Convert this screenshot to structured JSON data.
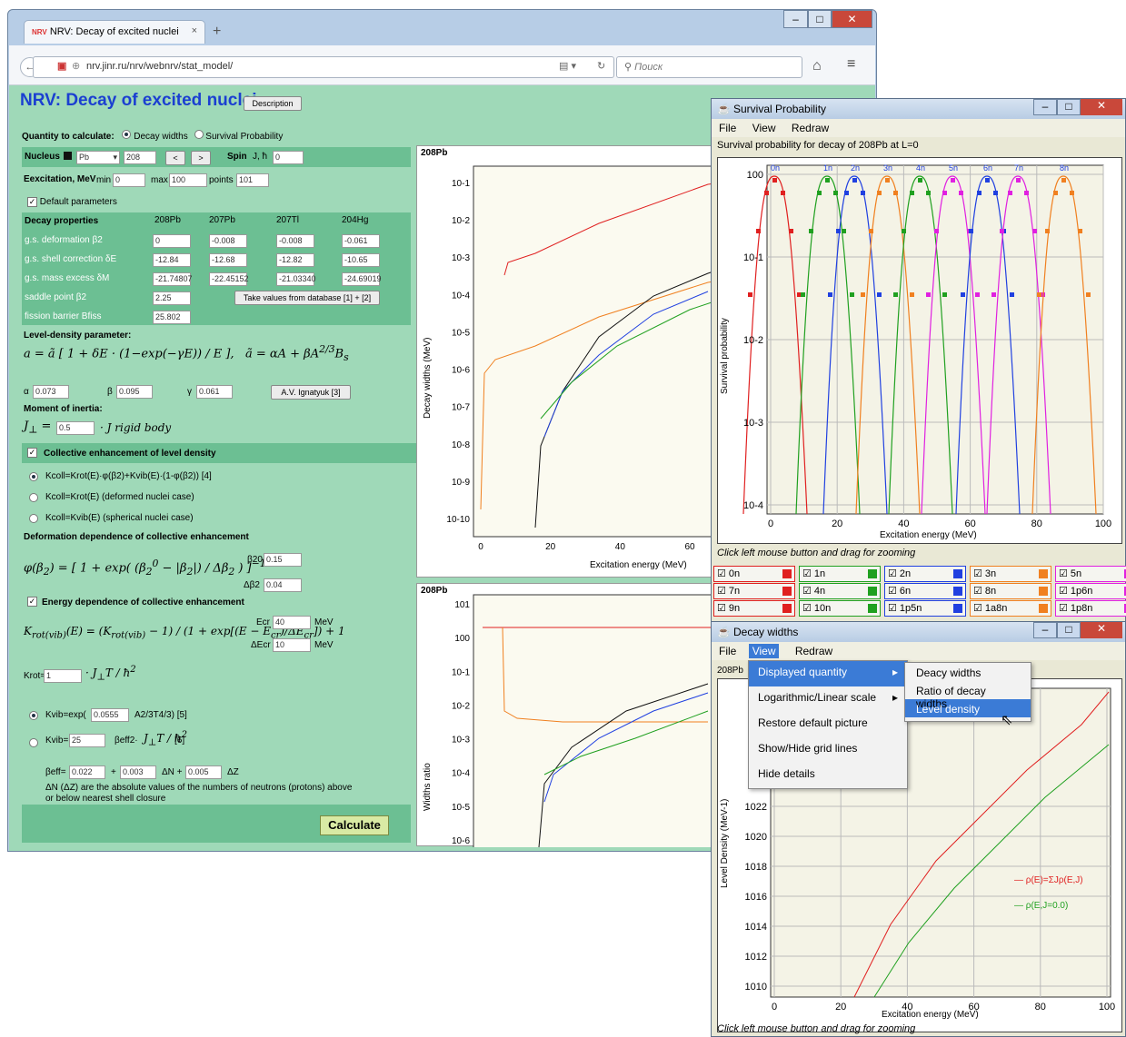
{
  "browser": {
    "tab_title": "NRV: Decay of excited nuclei",
    "tab_logo": "NRV",
    "url": "nrv.jinr.ru/nrv/webnrv/stat_model/",
    "url_host": "jinr.ru",
    "search_placeholder": "Поиск",
    "new_tab": "+",
    "close_tab": "×"
  },
  "page": {
    "title": "NRV: Decay of excited nuclei",
    "description_button": "Description",
    "quantity_label": "Quantity to calculate:",
    "quantity_options": [
      "Decay widths",
      "Survival Probability"
    ],
    "nucleus_label": "Nucleus",
    "nucleus_element": "Pb",
    "nucleus_mass": "208",
    "prev": "<",
    "next": ">",
    "spin_label": "Spin",
    "spin_unit": "J, ħ",
    "spin_value": "0",
    "excitation_label": "Eexcitation, MeV",
    "min_label": "min",
    "min_value": "0",
    "max_label": "max",
    "max_value": "100",
    "points_label": "points",
    "points_value": "101",
    "default_params": "Default parameters",
    "decay_props_label": "Decay properties",
    "nuclei": [
      "208Pb",
      "207Pb",
      "207Tl",
      "204Hg"
    ],
    "rows": [
      {
        "label": "g.s. deformation β2",
        "values": [
          "0",
          "-0.008",
          "-0.008",
          "-0.061"
        ]
      },
      {
        "label": "g.s. shell correction δE",
        "values": [
          "-12.84",
          "-12.68",
          "-12.82",
          "-10.65"
        ]
      },
      {
        "label": "g.s. mass excess δM",
        "values": [
          "-21.74807",
          "-22.45152",
          "-21.03340",
          "-24.69019"
        ]
      }
    ],
    "saddle_label": "saddle point β2",
    "saddle_value": "2.25",
    "take_values": "Take values from database [1] + [2]",
    "fission_label": "fission barrier Bfiss",
    "fission_value": "25.802",
    "ldp_label": "Level-density parameter:",
    "alpha_label": "α",
    "alpha_value": "0.073",
    "beta_label": "β",
    "beta_value": "0.095",
    "gamma_label": "γ",
    "gamma_value": "0.061",
    "ignatyuk": "A.V. Ignatyuk [3]",
    "moi_label": "Moment of inertia:",
    "moi_value": "0.5",
    "moi_suffix": "· J rigid body",
    "collective_label": "Collective enhancement of level density",
    "kcoll_options": [
      "Kcoll=Krot(E)·φ(β2)+Kvib(E)·(1-φ(β2)) [4]",
      "Kcoll=Krot(E) (deformed nuclei case)",
      "Kcoll=Kvib(E) (spherical nuclei case)"
    ],
    "deform_dep_label": "Deformation dependence of collective enhancement",
    "beta20_label": "β20",
    "beta20_value": "0.15",
    "dbeta2_label": "Δβ2",
    "dbeta2_value": "0.04",
    "energy_dep_label": "Energy dependence of collective enhancement",
    "ecr_label": "Ecr",
    "ecr_value": "40",
    "decr_label": "ΔEcr",
    "decr_value": "10",
    "mev": "MeV",
    "krot_label": "Krot=",
    "krot_value": "1",
    "kvib1_label": "Kvib=exp(",
    "kvib1_value": "0.0555",
    "kvib1_suffix": "A2/3T4/3) [5]",
    "kvib2_label": "Kvib=",
    "kvib2_value": "25",
    "kvib2_suffix": "βeff2·",
    "kvib2_ref": "[6]",
    "beff_label": "βeff=",
    "beff_v1": "0.022",
    "beff_v2": "0.003",
    "beff_v3": "0.005",
    "dn": "ΔN +",
    "dz": "ΔZ",
    "note": "ΔN (ΔZ) are the absolute values of the numbers of neutrons (protons) above or below nearest shell closure",
    "calculate": "Calculate",
    "plot1_title": "208Pb",
    "plot1_ylabel": "Decay widths (MeV)",
    "plot1_xlabel": "Excitation energy (MeV)",
    "plot1_yticks": [
      "10-1",
      "10-2",
      "10-3",
      "10-4",
      "10-5",
      "10-6",
      "10-7",
      "10-8",
      "10-9",
      "10-10"
    ],
    "plot1_xticks": [
      "0",
      "20",
      "40",
      "60"
    ],
    "plot2_title": "208Pb",
    "plot2_ylabel": "Widths ratio",
    "plot2_yticks": [
      "101",
      "100",
      "10-1",
      "10-2",
      "10-3",
      "10-4",
      "10-5",
      "10-6"
    ]
  },
  "survival": {
    "title": "Survival Probability",
    "menu": [
      "File",
      "View",
      "Redraw"
    ],
    "subtitle": "Survival probability for decay of 208Pb at L=0",
    "ylabel": "Survival probability",
    "xlabel": "Excitation energy (MeV)",
    "yticks": [
      "100",
      "10-1",
      "10-2",
      "10-3",
      "10-4"
    ],
    "xticks": [
      "0",
      "20",
      "40",
      "60",
      "80",
      "100"
    ],
    "hint": "Click left mouse button and drag for zooming",
    "legend": [
      {
        "label": "0n",
        "color": "#e02020"
      },
      {
        "label": "1n",
        "color": "#20a020"
      },
      {
        "label": "2n",
        "color": "#2040e0"
      },
      {
        "label": "3n",
        "color": "#f08020"
      },
      {
        "label": "5n",
        "color": "#e020e0"
      },
      {
        "label": "7n",
        "color": "#e02020"
      },
      {
        "label": "4n",
        "color": "#20a020"
      },
      {
        "label": "6n",
        "color": "#2040e0"
      },
      {
        "label": "8n",
        "color": "#f08020"
      },
      {
        "label": "1p6n",
        "color": "#e020e0"
      },
      {
        "label": "9n",
        "color": "#e02020"
      },
      {
        "label": "10n",
        "color": "#20a020"
      },
      {
        "label": "1p5n",
        "color": "#2040e0"
      },
      {
        "label": "1a8n",
        "color": "#f08020"
      },
      {
        "label": "1p8n",
        "color": "#e020e0"
      }
    ],
    "curve_labels": [
      "0n",
      "1n",
      "2n",
      "3n",
      "4n",
      "5n",
      "6n",
      "7n",
      "8n"
    ]
  },
  "decay": {
    "title": "Decay widths",
    "menu": [
      "File",
      "View",
      "Redraw"
    ],
    "nucleus": "208Pb",
    "view_menu": [
      "Displayed quantity",
      "Logarithmic/Linear scale",
      "Restore default picture",
      "Show/Hide grid lines",
      "Hide details"
    ],
    "submenu": [
      "Deacy widths",
      "Ratio of decay widths",
      "Level density"
    ],
    "ylabel": "Level Density (MeV-1)",
    "xlabel": "Excitation energy (MeV)",
    "yticks": [
      "1022",
      "1020",
      "1018",
      "1016",
      "1014",
      "1012",
      "1010"
    ],
    "xticks": [
      "0",
      "20",
      "40",
      "60",
      "80",
      "100"
    ],
    "legend": [
      "ρ(E)=ΣJρ(E,J)",
      "ρ(E,J=0.0)"
    ],
    "hint": "Click left mouse button and drag for zooming",
    "colors": {
      "total": "#e02020",
      "j0": "#20a020"
    }
  }
}
